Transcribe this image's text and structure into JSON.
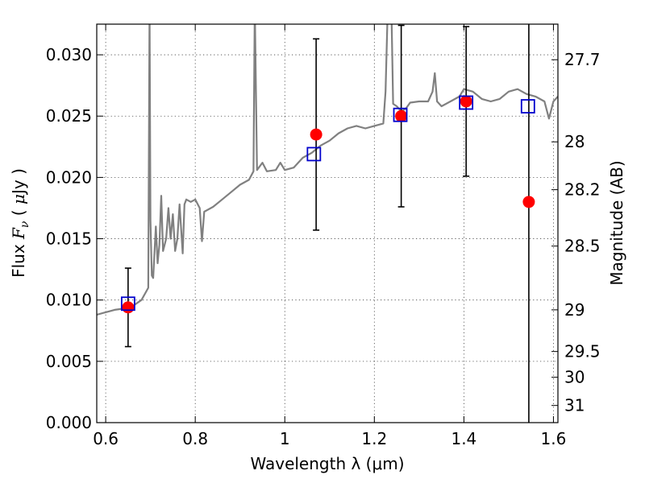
{
  "chart_data": {
    "type": "scatter",
    "title": "",
    "xlabel": "Wavelength  λ (μm)",
    "ylabel_left": "Flux  F_ν  ( μJy )",
    "ylabel_right": "Magnitude (AB)",
    "xlim": [
      0.58,
      1.61
    ],
    "ylim": [
      0.0,
      0.0325
    ],
    "grid": true,
    "x_ticks": [
      0.6,
      0.8,
      1.0,
      1.2,
      1.4,
      1.6
    ],
    "x_tick_labels": [
      "0.6",
      "0.8",
      "1",
      "1.2",
      "1.4",
      "1.6"
    ],
    "y_ticks": [
      0.0,
      0.005,
      0.01,
      0.015,
      0.02,
      0.025,
      0.03
    ],
    "y_tick_labels": [
      "0.000",
      "0.005",
      "0.010",
      "0.015",
      "0.020",
      "0.025",
      "0.030"
    ],
    "right_ticks": [
      {
        "flux": 0.0296,
        "label": "27.7"
      },
      {
        "flux": 0.0229,
        "label": "28"
      },
      {
        "flux": 0.019,
        "label": "28.2"
      },
      {
        "flux": 0.0144,
        "label": "28.5"
      },
      {
        "flux": 0.0092,
        "label": "29"
      },
      {
        "flux": 0.0058,
        "label": "29.5"
      },
      {
        "flux": 0.0037,
        "label": "30"
      },
      {
        "flux": 0.0014,
        "label": "31"
      }
    ],
    "colors": {
      "model": "#808080",
      "photometry": "#ff0000",
      "model_flux": "#0000cc",
      "errorbar": "#000000"
    },
    "model_spectrum": [
      [
        0.58,
        0.0088
      ],
      [
        0.6,
        0.009
      ],
      [
        0.62,
        0.0092
      ],
      [
        0.64,
        0.0093
      ],
      [
        0.66,
        0.0095
      ],
      [
        0.68,
        0.01
      ],
      [
        0.695,
        0.011
      ],
      [
        0.698,
        0.034
      ],
      [
        0.7,
        0.0165
      ],
      [
        0.703,
        0.012
      ],
      [
        0.706,
        0.0118
      ],
      [
        0.712,
        0.016
      ],
      [
        0.716,
        0.013
      ],
      [
        0.72,
        0.0145
      ],
      [
        0.724,
        0.0185
      ],
      [
        0.728,
        0.014
      ],
      [
        0.735,
        0.015
      ],
      [
        0.74,
        0.0175
      ],
      [
        0.745,
        0.015
      ],
      [
        0.75,
        0.017
      ],
      [
        0.755,
        0.014
      ],
      [
        0.76,
        0.015
      ],
      [
        0.765,
        0.0178
      ],
      [
        0.772,
        0.0138
      ],
      [
        0.776,
        0.0178
      ],
      [
        0.78,
        0.0182
      ],
      [
        0.79,
        0.018
      ],
      [
        0.8,
        0.0182
      ],
      [
        0.81,
        0.0175
      ],
      [
        0.815,
        0.0148
      ],
      [
        0.82,
        0.0172
      ],
      [
        0.84,
        0.0176
      ],
      [
        0.86,
        0.0182
      ],
      [
        0.88,
        0.0188
      ],
      [
        0.9,
        0.0194
      ],
      [
        0.92,
        0.0198
      ],
      [
        0.93,
        0.0205
      ],
      [
        0.933,
        0.034
      ],
      [
        0.938,
        0.0206
      ],
      [
        0.95,
        0.0212
      ],
      [
        0.96,
        0.0205
      ],
      [
        0.98,
        0.0206
      ],
      [
        0.99,
        0.0212
      ],
      [
        1.0,
        0.0206
      ],
      [
        1.02,
        0.0208
      ],
      [
        1.04,
        0.0216
      ],
      [
        1.06,
        0.022
      ],
      [
        1.08,
        0.0226
      ],
      [
        1.1,
        0.023
      ],
      [
        1.12,
        0.0236
      ],
      [
        1.14,
        0.024
      ],
      [
        1.16,
        0.0242
      ],
      [
        1.18,
        0.024
      ],
      [
        1.2,
        0.0242
      ],
      [
        1.22,
        0.0244
      ],
      [
        1.225,
        0.027
      ],
      [
        1.23,
        0.034
      ],
      [
        1.238,
        0.034
      ],
      [
        1.242,
        0.026
      ],
      [
        1.25,
        0.0258
      ],
      [
        1.26,
        0.0254
      ],
      [
        1.27,
        0.0256
      ],
      [
        1.28,
        0.0261
      ],
      [
        1.3,
        0.0262
      ],
      [
        1.32,
        0.0262
      ],
      [
        1.33,
        0.027
      ],
      [
        1.335,
        0.0285
      ],
      [
        1.34,
        0.0262
      ],
      [
        1.35,
        0.0258
      ],
      [
        1.37,
        0.0262
      ],
      [
        1.39,
        0.0266
      ],
      [
        1.4,
        0.0272
      ],
      [
        1.42,
        0.027
      ],
      [
        1.44,
        0.0264
      ],
      [
        1.46,
        0.0262
      ],
      [
        1.48,
        0.0264
      ],
      [
        1.5,
        0.027
      ],
      [
        1.52,
        0.0272
      ],
      [
        1.54,
        0.0268
      ],
      [
        1.56,
        0.0266
      ],
      [
        1.58,
        0.0262
      ],
      [
        1.59,
        0.0248
      ],
      [
        1.6,
        0.0262
      ],
      [
        1.61,
        0.0266
      ]
    ],
    "photometry": [
      {
        "x": 0.65,
        "y": 0.0094,
        "err": 0.0032
      },
      {
        "x": 1.07,
        "y": 0.0235,
        "err": 0.0078
      },
      {
        "x": 1.26,
        "y": 0.025,
        "err": 0.0074
      },
      {
        "x": 1.405,
        "y": 0.0262,
        "err": 0.0061
      },
      {
        "x": 1.545,
        "y": 0.018,
        "err": 0.02
      }
    ],
    "model_flux": [
      {
        "x": 0.65,
        "y": 0.0097
      },
      {
        "x": 1.065,
        "y": 0.0219
      },
      {
        "x": 1.258,
        "y": 0.0251
      },
      {
        "x": 1.405,
        "y": 0.0261
      },
      {
        "x": 1.543,
        "y": 0.0258
      }
    ]
  }
}
